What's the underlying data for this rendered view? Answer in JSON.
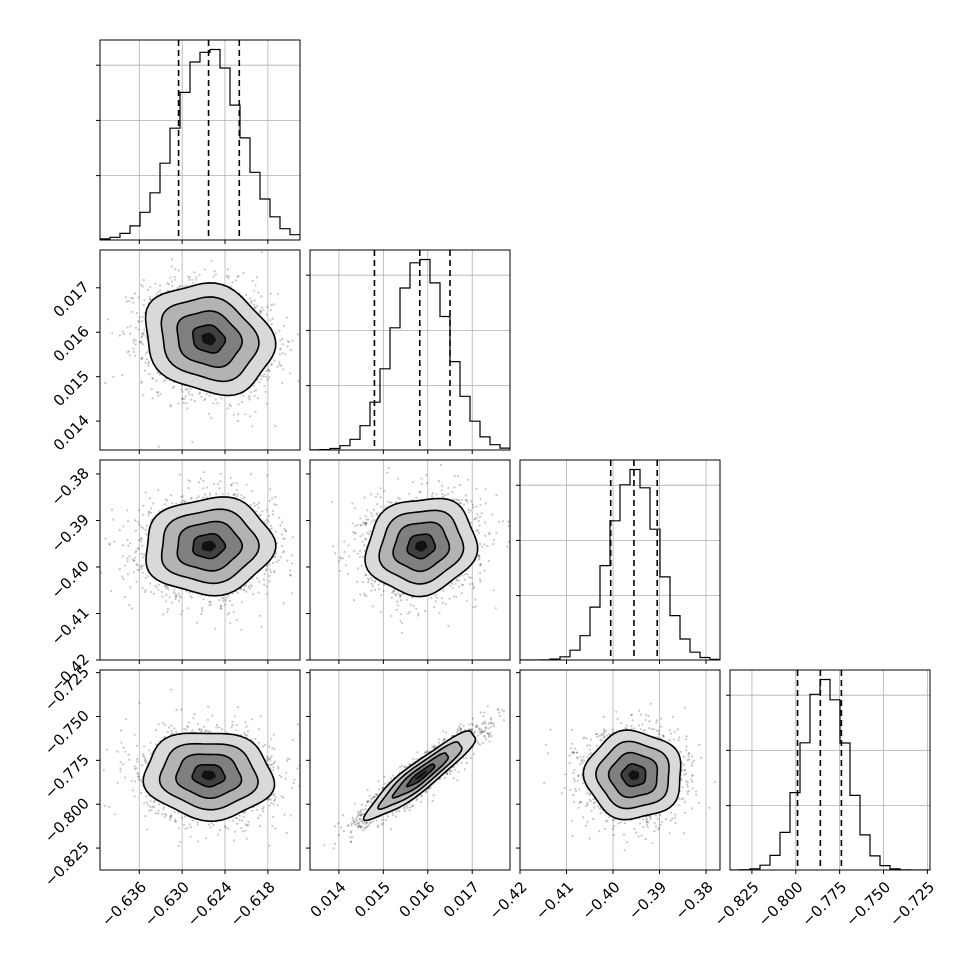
{
  "chart_data": {
    "type": "corner",
    "title": "",
    "n_params": 4,
    "params": [
      {
        "index": 0,
        "mean": -0.6263,
        "std": 0.0045,
        "range": [
          -0.6415,
          -0.6135
        ],
        "ticks": [
          -0.636,
          -0.63,
          -0.624,
          -0.618
        ],
        "tick_labels": [
          "−0.636",
          "−0.630",
          "−0.624",
          "−0.618"
        ],
        "quantiles": [
          -0.6305,
          -0.6263,
          -0.622
        ]
      },
      {
        "index": 1,
        "mean": 0.01585,
        "std": 0.00062,
        "range": [
          0.01335,
          0.01785
        ],
        "ticks": [
          0.014,
          0.015,
          0.016,
          0.017
        ],
        "tick_labels": [
          "0.014",
          "0.015",
          "0.016",
          "0.017"
        ],
        "quantiles": [
          0.0148,
          0.01582,
          0.0165
        ]
      },
      {
        "index": 2,
        "mean": -0.3955,
        "std": 0.0052,
        "range": [
          -0.42,
          -0.377
        ],
        "ticks": [
          -0.42,
          -0.41,
          -0.4,
          -0.39,
          -0.38
        ],
        "tick_labels": [
          "−0.42",
          "−0.41",
          "−0.40",
          "−0.39",
          "−0.38"
        ],
        "quantiles": [
          -0.4005,
          -0.3955,
          -0.3905
        ]
      },
      {
        "index": 3,
        "mean": -0.7835,
        "std": 0.0125,
        "range": [
          -0.8375,
          -0.7235
        ],
        "ticks": [
          -0.825,
          -0.8,
          -0.775,
          -0.75,
          -0.725
        ],
        "tick_labels": [
          "−0.825",
          "−0.800",
          "−0.775",
          "−0.750",
          "−0.725"
        ],
        "quantiles": [
          -0.799,
          -0.786,
          -0.774
        ]
      }
    ],
    "correlations": [
      {
        "pair": [
          1,
          0
        ],
        "rho": -0.15
      },
      {
        "pair": [
          2,
          0
        ],
        "rho": 0.05
      },
      {
        "pair": [
          2,
          1
        ],
        "rho": 0.1
      },
      {
        "pair": [
          3,
          0
        ],
        "rho": -0.05
      },
      {
        "pair": [
          3,
          1
        ],
        "rho": 0.92
      },
      {
        "pair": [
          3,
          2
        ],
        "rho": 0.0
      }
    ],
    "contour_levels_sigma": [
      0.5,
      1.0,
      1.5,
      2.0
    ],
    "histogram_bins": 20,
    "grid": true,
    "legend": "none"
  }
}
